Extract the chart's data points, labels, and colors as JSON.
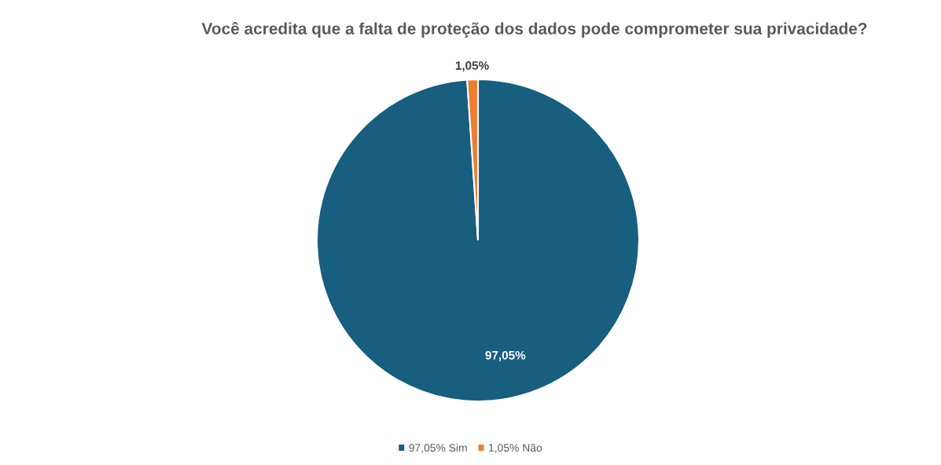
{
  "chart_data": {
    "type": "pie",
    "title": "Você acredita que a falta de proteção dos dados pode comprometer sua privacidade?",
    "categories": [
      "97,05% Sim",
      "1,05% Não"
    ],
    "values": [
      97.05,
      1.05
    ],
    "colors": [
      "#175e7f",
      "#ed7d31"
    ],
    "value_labels": [
      "97,05%",
      "1,05%"
    ],
    "legend": "bottom"
  }
}
